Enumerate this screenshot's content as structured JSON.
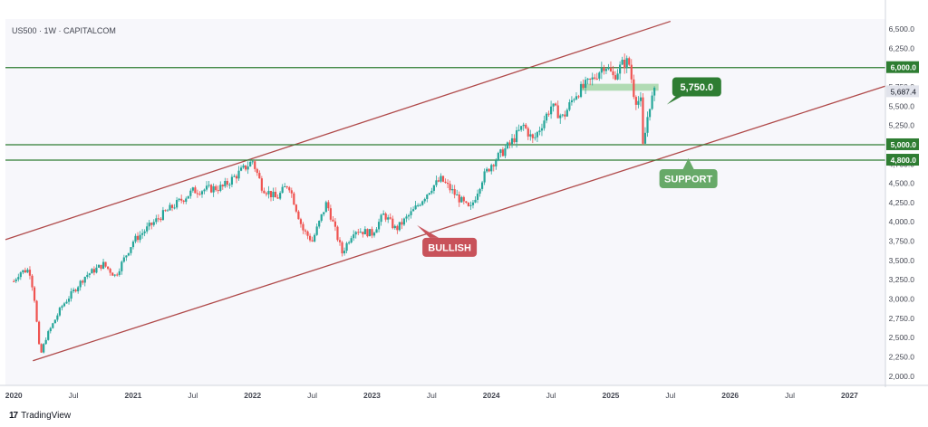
{
  "header": {
    "title": "US500 · 1W · CAPITALCOM"
  },
  "footer": {
    "brand_mark": "17",
    "brand": "TradingView"
  },
  "colors": {
    "up": "#26a69a",
    "down": "#ef5350",
    "channel": "#b04a4a",
    "level": "#2e7d32",
    "resistance_zone": "#a5d6a7",
    "badge_green": "#2e7d32",
    "badge_red": "#c8525a",
    "badge_support": "#67a968",
    "current_price_bg": "#e1e3eb"
  },
  "chart_data": {
    "type": "candlestick",
    "symbol": "US500",
    "interval": "1W",
    "source": "CAPITALCOM",
    "x_labels": [
      "2020",
      "Jul",
      "2021",
      "Jul",
      "2022",
      "Jul",
      "2023",
      "Jul",
      "2024",
      "Jul",
      "2025",
      "Jul",
      "2026",
      "Jul",
      "2027"
    ],
    "x_label_times": [
      2020.0,
      2020.5,
      2021.0,
      2021.5,
      2022.0,
      2022.5,
      2023.0,
      2023.5,
      2024.0,
      2024.5,
      2025.0,
      2025.5,
      2026.0,
      2026.5,
      2027.0
    ],
    "x_range": [
      2019.93,
      2027.3
    ],
    "y_ticks": [
      "2,000.0",
      "2,250.0",
      "2,500.0",
      "2,750.0",
      "3,000.0",
      "3,250.0",
      "3,500.0",
      "3,750.0",
      "4,000.0",
      "4,250.0",
      "4,500.0",
      "4,750.0",
      "5,000.0",
      "5,250.0",
      "5,500.0",
      "5,750.0",
      "6,000.0",
      "6,250.0",
      "6,500.0"
    ],
    "y_tick_values": [
      2000,
      2250,
      2500,
      2750,
      3000,
      3250,
      3500,
      3750,
      4000,
      4250,
      4500,
      4750,
      5000,
      5250,
      5500,
      5750,
      6000,
      6250,
      6500
    ],
    "y_range": [
      1880,
      6630
    ],
    "current_price": {
      "value": 5687.4,
      "label": "5,687.4"
    },
    "horizontal_levels": [
      {
        "value": 6000,
        "label": "6,000.0"
      },
      {
        "value": 5000,
        "label": "5,000.0"
      },
      {
        "value": 4800,
        "label": "4,800.0"
      }
    ],
    "resistance_zone": {
      "from": 5700,
      "to": 5790,
      "t_start": 2024.75,
      "t_end": 2025.4
    },
    "channel_lines": [
      {
        "name": "upper",
        "t1": 2019.93,
        "v1": 3770,
        "t2": 2025.5,
        "v2": 6600
      },
      {
        "name": "lower",
        "t1": 2020.16,
        "v1": 2200,
        "t2": 2027.3,
        "v2": 5760
      }
    ],
    "trend_anchors": [
      {
        "t": 2020.0,
        "v": 3230
      },
      {
        "t": 2020.05,
        "v": 3350
      },
      {
        "t": 2020.13,
        "v": 3380
      },
      {
        "t": 2020.17,
        "v": 3050
      },
      {
        "t": 2020.22,
        "v": 2250
      },
      {
        "t": 2020.27,
        "v": 2500
      },
      {
        "t": 2020.4,
        "v": 2900
      },
      {
        "t": 2020.6,
        "v": 3300
      },
      {
        "t": 2020.75,
        "v": 3450
      },
      {
        "t": 2020.85,
        "v": 3300
      },
      {
        "t": 2021.0,
        "v": 3750
      },
      {
        "t": 2021.25,
        "v": 4100
      },
      {
        "t": 2021.5,
        "v": 4400
      },
      {
        "t": 2021.75,
        "v": 4450
      },
      {
        "t": 2021.92,
        "v": 4680
      },
      {
        "t": 2022.0,
        "v": 4790
      },
      {
        "t": 2022.08,
        "v": 4450
      },
      {
        "t": 2022.2,
        "v": 4300
      },
      {
        "t": 2022.3,
        "v": 4500
      },
      {
        "t": 2022.42,
        "v": 3900
      },
      {
        "t": 2022.5,
        "v": 3750
      },
      {
        "t": 2022.62,
        "v": 4250
      },
      {
        "t": 2022.75,
        "v": 3600
      },
      {
        "t": 2022.85,
        "v": 3900
      },
      {
        "t": 2023.0,
        "v": 3850
      },
      {
        "t": 2023.1,
        "v": 4100
      },
      {
        "t": 2023.2,
        "v": 3900
      },
      {
        "t": 2023.35,
        "v": 4150
      },
      {
        "t": 2023.5,
        "v": 4450
      },
      {
        "t": 2023.58,
        "v": 4550
      },
      {
        "t": 2023.7,
        "v": 4350
      },
      {
        "t": 2023.82,
        "v": 4150
      },
      {
        "t": 2023.92,
        "v": 4550
      },
      {
        "t": 2024.0,
        "v": 4750
      },
      {
        "t": 2024.15,
        "v": 5000
      },
      {
        "t": 2024.27,
        "v": 5250
      },
      {
        "t": 2024.35,
        "v": 5050
      },
      {
        "t": 2024.5,
        "v": 5500
      },
      {
        "t": 2024.6,
        "v": 5350
      },
      {
        "t": 2024.7,
        "v": 5650
      },
      {
        "t": 2024.85,
        "v": 5850
      },
      {
        "t": 2024.95,
        "v": 6050
      },
      {
        "t": 2025.02,
        "v": 5880
      },
      {
        "t": 2025.1,
        "v": 6050
      },
      {
        "t": 2025.15,
        "v": 6080
      },
      {
        "t": 2025.2,
        "v": 5600
      },
      {
        "t": 2025.25,
        "v": 5550
      },
      {
        "t": 2025.27,
        "v": 4950
      },
      {
        "t": 2025.32,
        "v": 5500
      },
      {
        "t": 2025.37,
        "v": 5687
      }
    ],
    "annotations": [
      {
        "name": "resistance",
        "text": "5,750.0",
        "t": 2025.72,
        "v": 5750,
        "style": "green"
      },
      {
        "name": "support",
        "text": "SUPPORT",
        "t": 2025.65,
        "v": 4560,
        "style": "support"
      },
      {
        "name": "bullish",
        "text": "BULLISH",
        "t": 2023.65,
        "v": 3670,
        "style": "red"
      }
    ]
  }
}
